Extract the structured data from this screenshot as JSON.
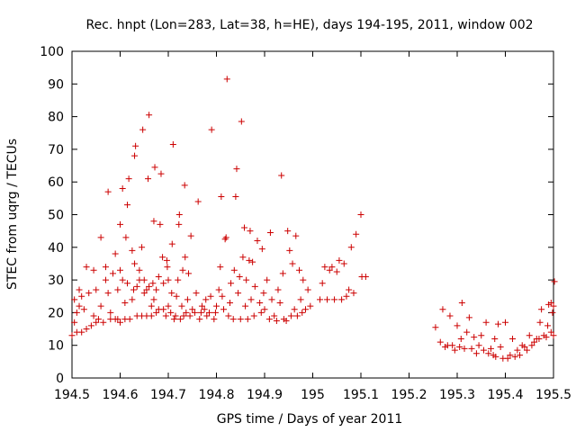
{
  "chart_data": {
    "type": "scatter",
    "title": "Rec. hnpt (Lon=283, Lat=38, h=HE), days 194-195, 2011, window 002",
    "xlabel": "GPS time / Days of year 2011",
    "ylabel": "STEC from uqrg / TECUs",
    "xlim": [
      194.5,
      195.5
    ],
    "ylim": [
      0,
      100
    ],
    "xticks": [
      194.5,
      194.6,
      194.7,
      194.8,
      194.9,
      195,
      195.1,
      195.2,
      195.3,
      195.4,
      195.5
    ],
    "xtick_labels": [
      "194.5",
      "194.6",
      "194.7",
      "194.8",
      "194.9",
      "195",
      "195.1",
      "195.2",
      "195.3",
      "195.4",
      "195.5"
    ],
    "yticks": [
      0,
      10,
      20,
      30,
      40,
      50,
      60,
      70,
      80,
      90,
      100
    ],
    "ytick_labels": [
      "0",
      "10",
      "20",
      "30",
      "40",
      "50",
      "60",
      "70",
      "80",
      "90",
      "100"
    ],
    "grid": false,
    "marker": "plus",
    "color": "#cc0000",
    "series": [
      {
        "name": "STEC",
        "points": [
          [
            194.5,
            13
          ],
          [
            194.505,
            17
          ],
          [
            194.505,
            24
          ],
          [
            194.51,
            14
          ],
          [
            194.51,
            20
          ],
          [
            194.515,
            22
          ],
          [
            194.515,
            27
          ],
          [
            194.52,
            14
          ],
          [
            194.52,
            25
          ],
          [
            194.525,
            21
          ],
          [
            194.53,
            15
          ],
          [
            194.53,
            34
          ],
          [
            194.535,
            26
          ],
          [
            194.54,
            16
          ],
          [
            194.545,
            19
          ],
          [
            194.545,
            33
          ],
          [
            194.55,
            17
          ],
          [
            194.55,
            27
          ],
          [
            194.555,
            18
          ],
          [
            194.56,
            22
          ],
          [
            194.56,
            43
          ],
          [
            194.565,
            17
          ],
          [
            194.57,
            30
          ],
          [
            194.57,
            34
          ],
          [
            194.575,
            26
          ],
          [
            194.575,
            57
          ],
          [
            194.58,
            18
          ],
          [
            194.58,
            20
          ],
          [
            194.585,
            32
          ],
          [
            194.59,
            18
          ],
          [
            194.59,
            38
          ],
          [
            194.595,
            18
          ],
          [
            194.595,
            27
          ],
          [
            194.6,
            17
          ],
          [
            194.6,
            33
          ],
          [
            194.6,
            47
          ],
          [
            194.605,
            30
          ],
          [
            194.605,
            58
          ],
          [
            194.61,
            18
          ],
          [
            194.61,
            23
          ],
          [
            194.612,
            43
          ],
          [
            194.615,
            29
          ],
          [
            194.615,
            53
          ],
          [
            194.618,
            61
          ],
          [
            194.62,
            18
          ],
          [
            194.625,
            24
          ],
          [
            194.625,
            39
          ],
          [
            194.628,
            27
          ],
          [
            194.63,
            35
          ],
          [
            194.63,
            68
          ],
          [
            194.632,
            71
          ],
          [
            194.635,
            19
          ],
          [
            194.635,
            28
          ],
          [
            194.64,
            30
          ],
          [
            194.64,
            33
          ],
          [
            194.645,
            19
          ],
          [
            194.645,
            40
          ],
          [
            194.647,
            76
          ],
          [
            194.65,
            26
          ],
          [
            194.65,
            30
          ],
          [
            194.655,
            19
          ],
          [
            194.655,
            27
          ],
          [
            194.658,
            61
          ],
          [
            194.66,
            28
          ],
          [
            194.66,
            80.5
          ],
          [
            194.665,
            19
          ],
          [
            194.665,
            22
          ],
          [
            194.668,
            29
          ],
          [
            194.67,
            24
          ],
          [
            194.67,
            48
          ],
          [
            194.672,
            64.5
          ],
          [
            194.675,
            20
          ],
          [
            194.675,
            27
          ],
          [
            194.68,
            21
          ],
          [
            194.68,
            31
          ],
          [
            194.683,
            47
          ],
          [
            194.685,
            62.5
          ],
          [
            194.688,
            37
          ],
          [
            194.69,
            21
          ],
          [
            194.69,
            29
          ],
          [
            194.695,
            19
          ],
          [
            194.697,
            36
          ],
          [
            194.698,
            34
          ],
          [
            194.7,
            22
          ],
          [
            194.7,
            30
          ],
          [
            194.705,
            20
          ],
          [
            194.707,
            26
          ],
          [
            194.708,
            41
          ],
          [
            194.71,
            71.5
          ],
          [
            194.712,
            18
          ],
          [
            194.715,
            19
          ],
          [
            194.717,
            25
          ],
          [
            194.72,
            30
          ],
          [
            194.722,
            47
          ],
          [
            194.723,
            50
          ],
          [
            194.725,
            18
          ],
          [
            194.728,
            22
          ],
          [
            194.73,
            33
          ],
          [
            194.732,
            19
          ],
          [
            194.734,
            59
          ],
          [
            194.735,
            37
          ],
          [
            194.737,
            20
          ],
          [
            194.74,
            24
          ],
          [
            194.742,
            32
          ],
          [
            194.745,
            19
          ],
          [
            194.747,
            43.5
          ],
          [
            194.75,
            21
          ],
          [
            194.755,
            20
          ],
          [
            194.758,
            26
          ],
          [
            194.762,
            54
          ],
          [
            194.765,
            18
          ],
          [
            194.768,
            20
          ],
          [
            194.77,
            22
          ],
          [
            194.775,
            21
          ],
          [
            194.778,
            24
          ],
          [
            194.78,
            19
          ],
          [
            194.785,
            20
          ],
          [
            194.788,
            25
          ],
          [
            194.79,
            76
          ],
          [
            194.795,
            18
          ],
          [
            194.798,
            20
          ],
          [
            194.8,
            22
          ],
          [
            194.805,
            27
          ],
          [
            194.808,
            34
          ],
          [
            194.81,
            55.5
          ],
          [
            194.812,
            25
          ],
          [
            194.815,
            21
          ],
          [
            194.818,
            42.5
          ],
          [
            194.82,
            43
          ],
          [
            194.822,
            91.5
          ],
          [
            194.825,
            19
          ],
          [
            194.828,
            23
          ],
          [
            194.83,
            29
          ],
          [
            194.835,
            18
          ],
          [
            194.837,
            33
          ],
          [
            194.84,
            55.5
          ],
          [
            194.842,
            64
          ],
          [
            194.845,
            26
          ],
          [
            194.848,
            31
          ],
          [
            194.85,
            18
          ],
          [
            194.852,
            78.5
          ],
          [
            194.855,
            37
          ],
          [
            194.858,
            46
          ],
          [
            194.86,
            22
          ],
          [
            194.862,
            30
          ],
          [
            194.865,
            18
          ],
          [
            194.868,
            36
          ],
          [
            194.87,
            45
          ],
          [
            194.872,
            24
          ],
          [
            194.875,
            35.5
          ],
          [
            194.878,
            19
          ],
          [
            194.88,
            28
          ],
          [
            194.885,
            42
          ],
          [
            194.89,
            23
          ],
          [
            194.893,
            20
          ],
          [
            194.895,
            39.5
          ],
          [
            194.898,
            26
          ],
          [
            194.9,
            21
          ],
          [
            194.905,
            30
          ],
          [
            194.91,
            18
          ],
          [
            194.912,
            44.5
          ],
          [
            194.915,
            24
          ],
          [
            194.92,
            19
          ],
          [
            194.925,
            17.5
          ],
          [
            194.928,
            27
          ],
          [
            194.932,
            23
          ],
          [
            194.935,
            62
          ],
          [
            194.938,
            32
          ],
          [
            194.94,
            18
          ],
          [
            194.945,
            17.5
          ],
          [
            194.948,
            45
          ],
          [
            194.952,
            39
          ],
          [
            194.955,
            19
          ],
          [
            194.958,
            35
          ],
          [
            194.962,
            21
          ],
          [
            194.965,
            43.5
          ],
          [
            194.968,
            19
          ],
          [
            194.972,
            33
          ],
          [
            194.975,
            24
          ],
          [
            194.978,
            20
          ],
          [
            194.98,
            30
          ],
          [
            194.985,
            21
          ],
          [
            194.99,
            27
          ],
          [
            194.995,
            22
          ],
          [
            195.015,
            24
          ],
          [
            195.02,
            29
          ],
          [
            195.025,
            34
          ],
          [
            195.03,
            24
          ],
          [
            195.035,
            33
          ],
          [
            195.04,
            34
          ],
          [
            195.045,
            24
          ],
          [
            195.05,
            32.5
          ],
          [
            195.055,
            36
          ],
          [
            195.06,
            24
          ],
          [
            195.065,
            35
          ],
          [
            195.07,
            25
          ],
          [
            195.075,
            27
          ],
          [
            195.08,
            40
          ],
          [
            195.085,
            26
          ],
          [
            195.09,
            44
          ],
          [
            195.1,
            50
          ],
          [
            195.102,
            31
          ],
          [
            195.11,
            31
          ],
          [
            195.255,
            15.5
          ],
          [
            195.265,
            11
          ],
          [
            195.27,
            21
          ],
          [
            195.275,
            9.5
          ],
          [
            195.28,
            10
          ],
          [
            195.285,
            19
          ],
          [
            195.29,
            10
          ],
          [
            195.295,
            8.5
          ],
          [
            195.3,
            16
          ],
          [
            195.305,
            9.5
          ],
          [
            195.308,
            12
          ],
          [
            195.31,
            23
          ],
          [
            195.315,
            9
          ],
          [
            195.32,
            14
          ],
          [
            195.325,
            18.5
          ],
          [
            195.33,
            9
          ],
          [
            195.335,
            12.5
          ],
          [
            195.34,
            7.5
          ],
          [
            195.345,
            10
          ],
          [
            195.35,
            13
          ],
          [
            195.355,
            8.5
          ],
          [
            195.36,
            17
          ],
          [
            195.365,
            7.5
          ],
          [
            195.37,
            9
          ],
          [
            195.375,
            7
          ],
          [
            195.378,
            12
          ],
          [
            195.38,
            6.5
          ],
          [
            195.385,
            16.5
          ],
          [
            195.39,
            9.5
          ],
          [
            195.395,
            6
          ],
          [
            195.4,
            17
          ],
          [
            195.405,
            6
          ],
          [
            195.41,
            7
          ],
          [
            195.415,
            12
          ],
          [
            195.42,
            6.5
          ],
          [
            195.425,
            8.5
          ],
          [
            195.43,
            7
          ],
          [
            195.435,
            10
          ],
          [
            195.44,
            9.5
          ],
          [
            195.445,
            8.5
          ],
          [
            195.45,
            13
          ],
          [
            195.455,
            10
          ],
          [
            195.46,
            11
          ],
          [
            195.465,
            12
          ],
          [
            195.47,
            12
          ],
          [
            195.472,
            17
          ],
          [
            195.475,
            21
          ],
          [
            195.48,
            13
          ],
          [
            195.485,
            12.5
          ],
          [
            195.488,
            16
          ],
          [
            195.49,
            22.5
          ],
          [
            195.495,
            23
          ],
          [
            195.495,
            14
          ],
          [
            195.498,
            20
          ],
          [
            195.5,
            13
          ],
          [
            195.5,
            22
          ],
          [
            195.502,
            29.5
          ]
        ]
      }
    ]
  }
}
